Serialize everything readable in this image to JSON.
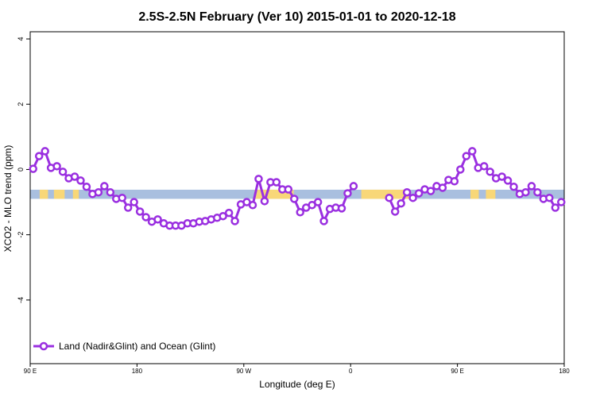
{
  "chart_data": {
    "type": "line",
    "title": "2.5S-2.5N February (Ver 10)   2015-01-01 to 2020-12-18",
    "x_label": "Longitude (deg E)",
    "y_label": "XCO2 - MLO trend (ppm)",
    "xlim": [
      90,
      540
    ],
    "ylim": [
      -5.95,
      4.22
    ],
    "xticks": [
      {
        "value": 90,
        "label": "90 E"
      },
      180,
      {
        "value": 270,
        "label": "90 W"
      },
      {
        "value": 360,
        "label": "0"
      },
      {
        "value": 450,
        "label": "90 E"
      },
      {
        "value": 540,
        "label": "180"
      }
    ],
    "yticks": [
      -4,
      -2,
      0,
      2,
      4
    ],
    "band": [
      -0.9,
      -0.62
    ],
    "band_color": "#a9bfdf",
    "land_color": "#f8d778",
    "land_ranges": [
      [
        98,
        105
      ],
      [
        110,
        119
      ],
      [
        126,
        131
      ],
      [
        279,
        312
      ],
      [
        369,
        409
      ],
      [
        461,
        468
      ],
      [
        474,
        482
      ]
    ],
    "legend": "bottom-left",
    "x": [
      92.5,
      97.5,
      102.5,
      107.5,
      112.5,
      117.5,
      122.5,
      127.5,
      132.5,
      137.5,
      142.5,
      147.5,
      152.5,
      157.5,
      162.5,
      167.5,
      172.5,
      177.5,
      182.5,
      187.5,
      192.5,
      197.5,
      202.5,
      207.5,
      212.5,
      217.5,
      222.5,
      227.5,
      232.5,
      237.5,
      242.5,
      247.5,
      252.5,
      257.5,
      262.5,
      267.5,
      272.5,
      277.5,
      282.5,
      287.5,
      292.5,
      297.5,
      302.5,
      307.5,
      312.5,
      317.5,
      322.5,
      327.5,
      332.5,
      337.5,
      342.5,
      347.5,
      352.5,
      357.5,
      362.5,
      367.5,
      372.5,
      377.5,
      382.5,
      387.5,
      392.5,
      397.5,
      402.5,
      407.5,
      412.5,
      417.5,
      422.5,
      427.5,
      432.5,
      437.5,
      442.5,
      447.5,
      452.5,
      457.5,
      462.5,
      467.5,
      472.5,
      477.5,
      482.5,
      487.5,
      492.5,
      497.5,
      502.5,
      507.5,
      512.5,
      517.5,
      522.5,
      527.5,
      532.5,
      537.5
    ],
    "series": [
      {
        "name": "Land (Nadir&Glint) and Ocean (Glint)",
        "color": "#9a2fe0",
        "values": [
          0.02,
          0.41,
          0.56,
          0.05,
          0.1,
          -0.07,
          -0.27,
          -0.22,
          -0.34,
          -0.53,
          -0.75,
          -0.7,
          -0.51,
          -0.7,
          -0.9,
          -0.87,
          -1.17,
          -1.0,
          -1.29,
          -1.46,
          -1.6,
          -1.53,
          -1.65,
          -1.72,
          -1.72,
          -1.72,
          -1.65,
          -1.65,
          -1.6,
          -1.58,
          -1.53,
          -1.48,
          -1.43,
          -1.33,
          -1.58,
          -1.07,
          -1.0,
          -1.09,
          -0.29,
          -0.97,
          -0.39,
          -0.39,
          -0.61,
          -0.61,
          -0.9,
          -1.31,
          -1.17,
          -1.09,
          -1.0,
          -1.58,
          -1.21,
          -1.17,
          -1.19,
          -0.73,
          -0.51,
          null,
          null,
          null,
          null,
          null,
          -0.87,
          -1.29,
          -1.04,
          -0.7,
          -0.87,
          -0.73,
          -0.61,
          -0.66,
          -0.51,
          -0.56,
          -0.32,
          -0.36,
          0.0,
          0.41,
          0.56,
          0.05,
          0.1,
          -0.07,
          -0.27,
          -0.22,
          -0.34,
          -0.53,
          -0.75,
          -0.7,
          -0.51,
          -0.7,
          -0.9,
          -0.87,
          -1.17,
          -1.0
        ]
      }
    ]
  }
}
